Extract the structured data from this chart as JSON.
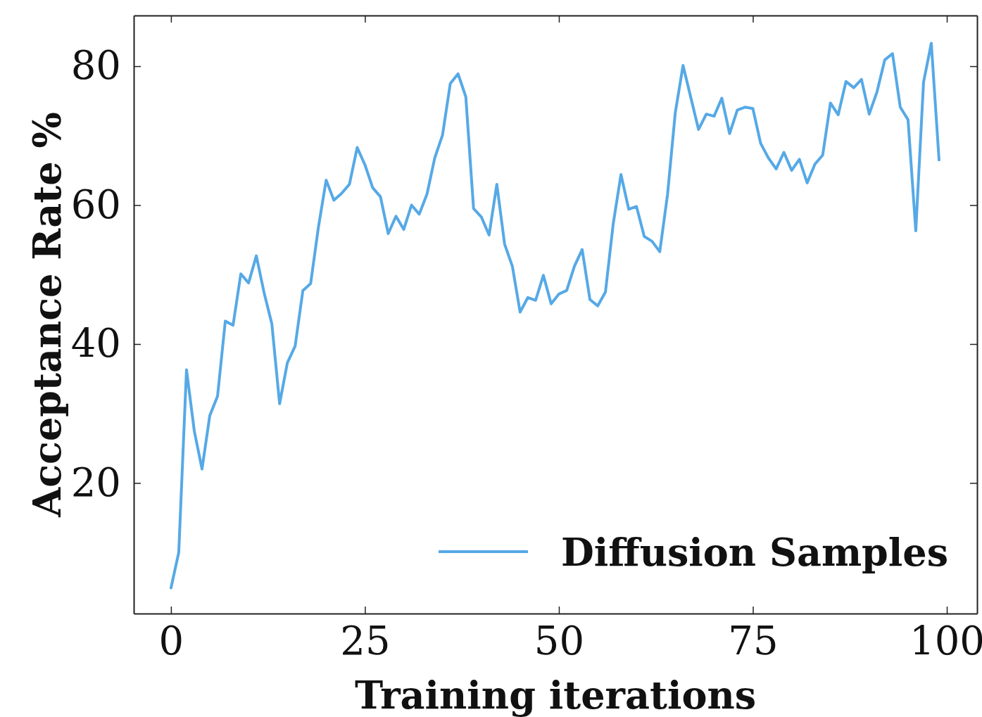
{
  "chart_data": {
    "type": "line",
    "xlabel": "Training iterations",
    "ylabel": "Acceptance Rate %",
    "x": [
      0,
      1,
      2,
      3,
      4,
      5,
      6,
      7,
      8,
      9,
      10,
      11,
      12,
      13,
      14,
      15,
      16,
      17,
      18,
      19,
      20,
      21,
      22,
      23,
      24,
      25,
      26,
      27,
      28,
      29,
      30,
      31,
      32,
      33,
      34,
      35,
      36,
      37,
      38,
      39,
      40,
      41,
      42,
      43,
      44,
      45,
      46,
      47,
      48,
      49,
      50,
      51,
      52,
      53,
      54,
      55,
      56,
      57,
      58,
      59,
      60,
      61,
      62,
      63,
      64,
      65,
      66,
      67,
      68,
      69,
      70,
      71,
      72,
      73,
      74,
      75,
      76,
      77,
      78,
      79,
      80,
      81,
      82,
      83,
      84,
      85,
      86,
      87,
      88,
      89,
      90,
      91,
      92,
      93,
      94,
      95,
      96,
      97,
      98,
      99
    ],
    "series": [
      {
        "name": "Diffusion Samples",
        "color": "#56a9e6",
        "values": [
          4.9,
          10.0,
          36.3,
          27.5,
          22.0,
          29.7,
          32.5,
          43.3,
          42.7,
          50.1,
          48.8,
          52.7,
          47.4,
          42.9,
          31.4,
          37.3,
          39.7,
          47.7,
          48.7,
          56.8,
          63.6,
          60.7,
          61.7,
          63.0,
          68.3,
          65.8,
          62.5,
          61.2,
          55.9,
          58.4,
          56.5,
          60.0,
          58.7,
          61.6,
          66.8,
          70.1,
          77.5,
          78.9,
          75.6,
          59.5,
          58.3,
          55.7,
          63.0,
          54.4,
          51.2,
          44.6,
          46.7,
          46.3,
          49.9,
          45.8,
          47.2,
          47.7,
          51.2,
          53.6,
          46.4,
          45.5,
          47.5,
          57.3,
          64.4,
          59.4,
          59.8,
          55.5,
          54.8,
          53.3,
          61.5,
          73.3,
          80.1,
          75.5,
          70.9,
          73.1,
          72.8,
          75.4,
          70.3,
          73.7,
          74.1,
          73.9,
          68.9,
          66.8,
          65.2,
          67.6,
          65.0,
          66.6,
          63.2,
          65.9,
          67.2,
          74.7,
          73.0,
          77.8,
          76.9,
          78.1,
          73.1,
          76.3,
          80.9,
          81.8,
          74.1,
          72.3,
          56.3,
          77.7,
          83.3,
          66.5
        ]
      }
    ],
    "xlim": [
      -4.8,
      103.9
    ],
    "ylim": [
      1.2,
      87.3
    ],
    "xticks": [
      0,
      25,
      50,
      75,
      100
    ],
    "yticks": [
      20,
      40,
      60,
      80
    ],
    "grid": false,
    "legend": "bottom right",
    "line_style": "solid",
    "marker": "none"
  }
}
